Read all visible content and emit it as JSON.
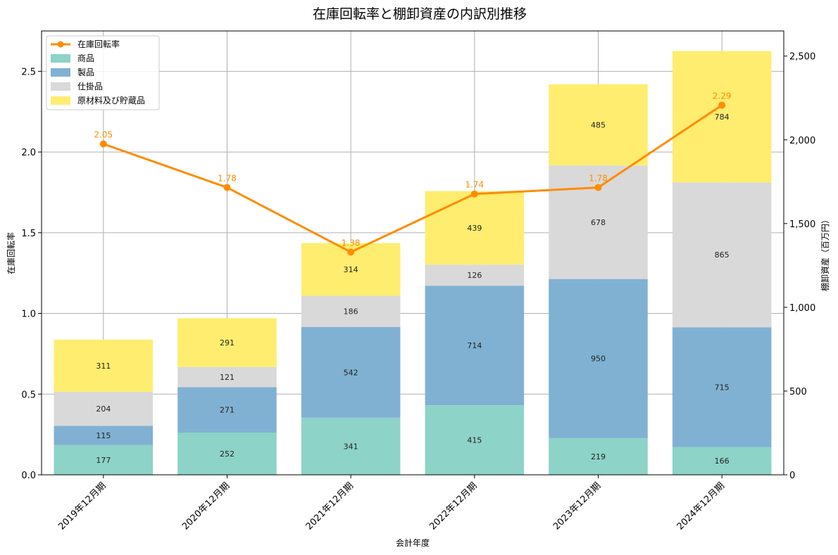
{
  "chart_data": {
    "type": "bar",
    "title": "在庫回転率と棚卸資産の内訳別推移",
    "xlabel": "会計年度",
    "ylabel_left": "在庫回転率",
    "ylabel_right": "棚卸資産（百万円）",
    "categories": [
      "2019年12月期",
      "2020年12月期",
      "2021年12月期",
      "2022年12月期",
      "2023年12月期",
      "2024年12月期"
    ],
    "ylim_left": [
      0,
      2.75
    ],
    "ylim_right": [
      0,
      2650
    ],
    "yticks_left": [
      0.0,
      0.5,
      1.0,
      1.5,
      2.0,
      2.5
    ],
    "yticks_left_labels": [
      "0.0",
      "0.5",
      "1.0",
      "1.5",
      "2.0",
      "2.5"
    ],
    "yticks_right": [
      0,
      500,
      1000,
      1500,
      2000,
      2500
    ],
    "yticks_right_labels": [
      "0",
      "500",
      "1,000",
      "1,500",
      "2,000",
      "2,500"
    ],
    "grid": true,
    "legend_position": "top-left",
    "series": [
      {
        "name": "商品",
        "kind": "stacked-bar",
        "color": "#8dd3c7",
        "values": [
          177,
          252,
          341,
          415,
          219,
          166
        ],
        "labels": [
          "177",
          "252",
          "341",
          "415",
          "219",
          "166"
        ]
      },
      {
        "name": "製品",
        "kind": "stacked-bar",
        "color": "#80b1d3",
        "values": [
          115,
          271,
          542,
          714,
          950,
          715
        ],
        "labels": [
          "115",
          "271",
          "542",
          "714",
          "950",
          "715"
        ]
      },
      {
        "name": "仕掛品",
        "kind": "stacked-bar",
        "color": "#d9d9d9",
        "values": [
          204,
          121,
          186,
          126,
          678,
          865
        ],
        "labels": [
          "204",
          "121",
          "186",
          "126",
          "678",
          "865"
        ]
      },
      {
        "name": "原材料及び貯蔵品",
        "kind": "stacked-bar",
        "color": "#ffed6f",
        "values": [
          311,
          291,
          314,
          439,
          485,
          784
        ],
        "labels": [
          "311",
          "291",
          "314",
          "439",
          "485",
          "784"
        ]
      }
    ],
    "line": {
      "name": "在庫回転率",
      "color": "#ff8c00",
      "values": [
        2.05,
        1.78,
        1.38,
        1.74,
        1.78,
        2.29
      ],
      "labels": [
        "2.05",
        "1.78",
        "1.38",
        "1.74",
        "1.78",
        "2.29"
      ]
    }
  }
}
